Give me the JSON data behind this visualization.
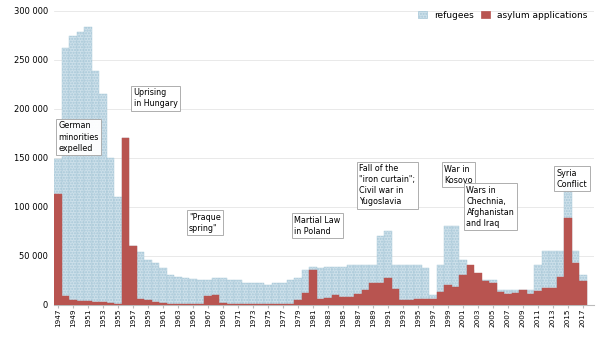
{
  "years": [
    1947,
    1948,
    1949,
    1950,
    1951,
    1952,
    1953,
    1954,
    1955,
    1956,
    1957,
    1958,
    1959,
    1960,
    1961,
    1962,
    1963,
    1964,
    1965,
    1966,
    1967,
    1968,
    1969,
    1970,
    1971,
    1972,
    1973,
    1974,
    1975,
    1976,
    1977,
    1978,
    1979,
    1980,
    1981,
    1982,
    1983,
    1984,
    1985,
    1986,
    1987,
    1988,
    1989,
    1990,
    1991,
    1992,
    1993,
    1994,
    1995,
    1996,
    1997,
    1998,
    1999,
    2000,
    2001,
    2002,
    2003,
    2004,
    2005,
    2006,
    2007,
    2008,
    2009,
    2010,
    2011,
    2012,
    2013,
    2014,
    2015,
    2016,
    2017
  ],
  "refugees": [
    148000,
    262000,
    274000,
    278000,
    283000,
    238000,
    215000,
    150000,
    110000,
    170000,
    60000,
    54000,
    45000,
    42000,
    37000,
    30000,
    28000,
    27000,
    26000,
    25000,
    25000,
    27000,
    27000,
    25000,
    25000,
    22000,
    22000,
    22000,
    20000,
    22000,
    22000,
    25000,
    27000,
    35000,
    38000,
    37000,
    38000,
    38000,
    38000,
    40000,
    40000,
    40000,
    40000,
    70000,
    75000,
    40000,
    40000,
    40000,
    40000,
    37000,
    10000,
    40000,
    80000,
    80000,
    45000,
    35000,
    25000,
    25000,
    25000,
    15000,
    15000,
    15000,
    15000,
    15000,
    40000,
    55000,
    55000,
    55000,
    130000,
    55000,
    30000
  ],
  "asylum": [
    113000,
    9000,
    5000,
    4000,
    4000,
    3000,
    3000,
    2000,
    1000,
    170000,
    60000,
    6000,
    5000,
    3000,
    2000,
    1000,
    1000,
    1000,
    1000,
    1000,
    9000,
    10000,
    2000,
    1000,
    1000,
    1000,
    1000,
    1000,
    1000,
    1000,
    1000,
    1000,
    5000,
    12000,
    35000,
    6000,
    7000,
    10000,
    8000,
    8000,
    11000,
    15000,
    22000,
    22000,
    27000,
    16000,
    5000,
    5000,
    6000,
    6000,
    6000,
    13000,
    20000,
    18000,
    30000,
    40000,
    32000,
    24000,
    22000,
    13000,
    11000,
    12000,
    15000,
    11000,
    14000,
    17000,
    17000,
    28000,
    88000,
    42000,
    24000
  ],
  "refugee_color": "#cde0ea",
  "refugee_edge_color": "#a8c8d8",
  "asylum_color": "#b85450",
  "asylum_edge_color": "#b85450",
  "ylim": [
    0,
    300000
  ],
  "yticks": [
    0,
    50000,
    100000,
    150000,
    200000,
    250000,
    300000
  ],
  "ytick_labels": [
    "0",
    "50 000",
    "100 000",
    "150 000",
    "200 000",
    "250 000",
    "300 000"
  ],
  "background_color": "#ffffff",
  "annotations": [
    {
      "text": "German\nminorities\nexpelled",
      "bx": 1947.1,
      "by": 155000
    },
    {
      "text": "Uprising\nin Hungary",
      "bx": 1957.1,
      "by": 200000
    },
    {
      "text": "\"Praque\nspring\"",
      "bx": 1964.5,
      "by": 73000
    },
    {
      "text": "Martial Law\nin Poland",
      "bx": 1978.5,
      "by": 70000
    },
    {
      "text": "Fall of the\n\"iron curtain\";\nCivil war in\nYugoslavia",
      "bx": 1987.2,
      "by": 100000
    },
    {
      "text": "War in\nKosovo",
      "bx": 1998.5,
      "by": 122000
    },
    {
      "text": "Wars in\nChechnia,\nAfghanistan\nand Iraq",
      "bx": 2001.5,
      "by": 78000
    },
    {
      "text": "Syria\nConflict",
      "bx": 2013.5,
      "by": 118000
    }
  ]
}
